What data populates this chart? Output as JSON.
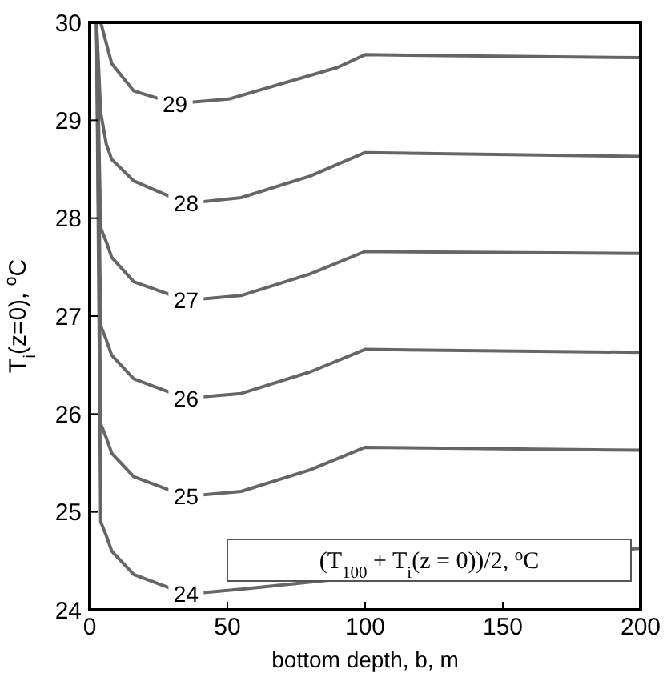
{
  "chart_data": {
    "type": "line",
    "xlabel": "bottom depth, b, m",
    "ylabel": "T$_{i}$(z=0), $^{o}$C",
    "xlim": [
      0,
      200
    ],
    "ylim": [
      24,
      30
    ],
    "xticks": [
      0,
      50,
      100,
      150,
      200
    ],
    "yticks": [
      24,
      25,
      26,
      27,
      28,
      29,
      30
    ],
    "grid": false,
    "marker": "none",
    "line_style": "solid",
    "annotations": [
      "(T$_{100}$ + T$_{i}$(z = 0))/2, $^{o}$C"
    ],
    "series": [
      {
        "name": "29",
        "color": "#666666",
        "x": [
          4,
          8,
          16,
          31,
          51,
          90,
          100,
          200
        ],
        "values": [
          30,
          29.58,
          29.3,
          29.17,
          29.22,
          29.54,
          29.67,
          29.64
        ]
      },
      {
        "name": "28",
        "color": "#666666",
        "x": [
          2.5,
          4,
          6,
          8,
          16,
          35,
          55,
          80,
          100,
          200
        ],
        "values": [
          30,
          29.08,
          28.76,
          28.6,
          28.38,
          28.15,
          28.21,
          28.43,
          28.67,
          28.63
        ]
      },
      {
        "name": "27",
        "color": "#666666",
        "x": [
          2.5,
          4,
          6,
          8,
          16,
          35,
          55,
          80,
          100,
          200
        ],
        "values": [
          30,
          27.9,
          27.76,
          27.6,
          27.35,
          27.16,
          27.21,
          27.43,
          27.66,
          27.64
        ]
      },
      {
        "name": "26",
        "color": "#666666",
        "x": [
          2.5,
          4,
          6,
          8,
          16,
          35,
          55,
          80,
          100,
          200
        ],
        "values": [
          30,
          26.9,
          26.76,
          26.6,
          26.36,
          26.16,
          26.21,
          26.43,
          26.66,
          26.63
        ]
      },
      {
        "name": "25",
        "color": "#666666",
        "x": [
          2.5,
          4,
          6,
          8,
          16,
          35,
          55,
          80,
          100,
          200
        ],
        "values": [
          30,
          25.9,
          25.76,
          25.6,
          25.36,
          25.16,
          25.21,
          25.43,
          25.66,
          25.63
        ]
      },
      {
        "name": "24",
        "color": "#666666",
        "x": [
          2.5,
          4,
          6,
          8,
          16,
          35,
          55,
          80,
          100,
          200
        ],
        "values": [
          30,
          24.9,
          24.76,
          24.6,
          24.36,
          24.16,
          24.21,
          null,
          null,
          24.63
        ]
      }
    ]
  }
}
